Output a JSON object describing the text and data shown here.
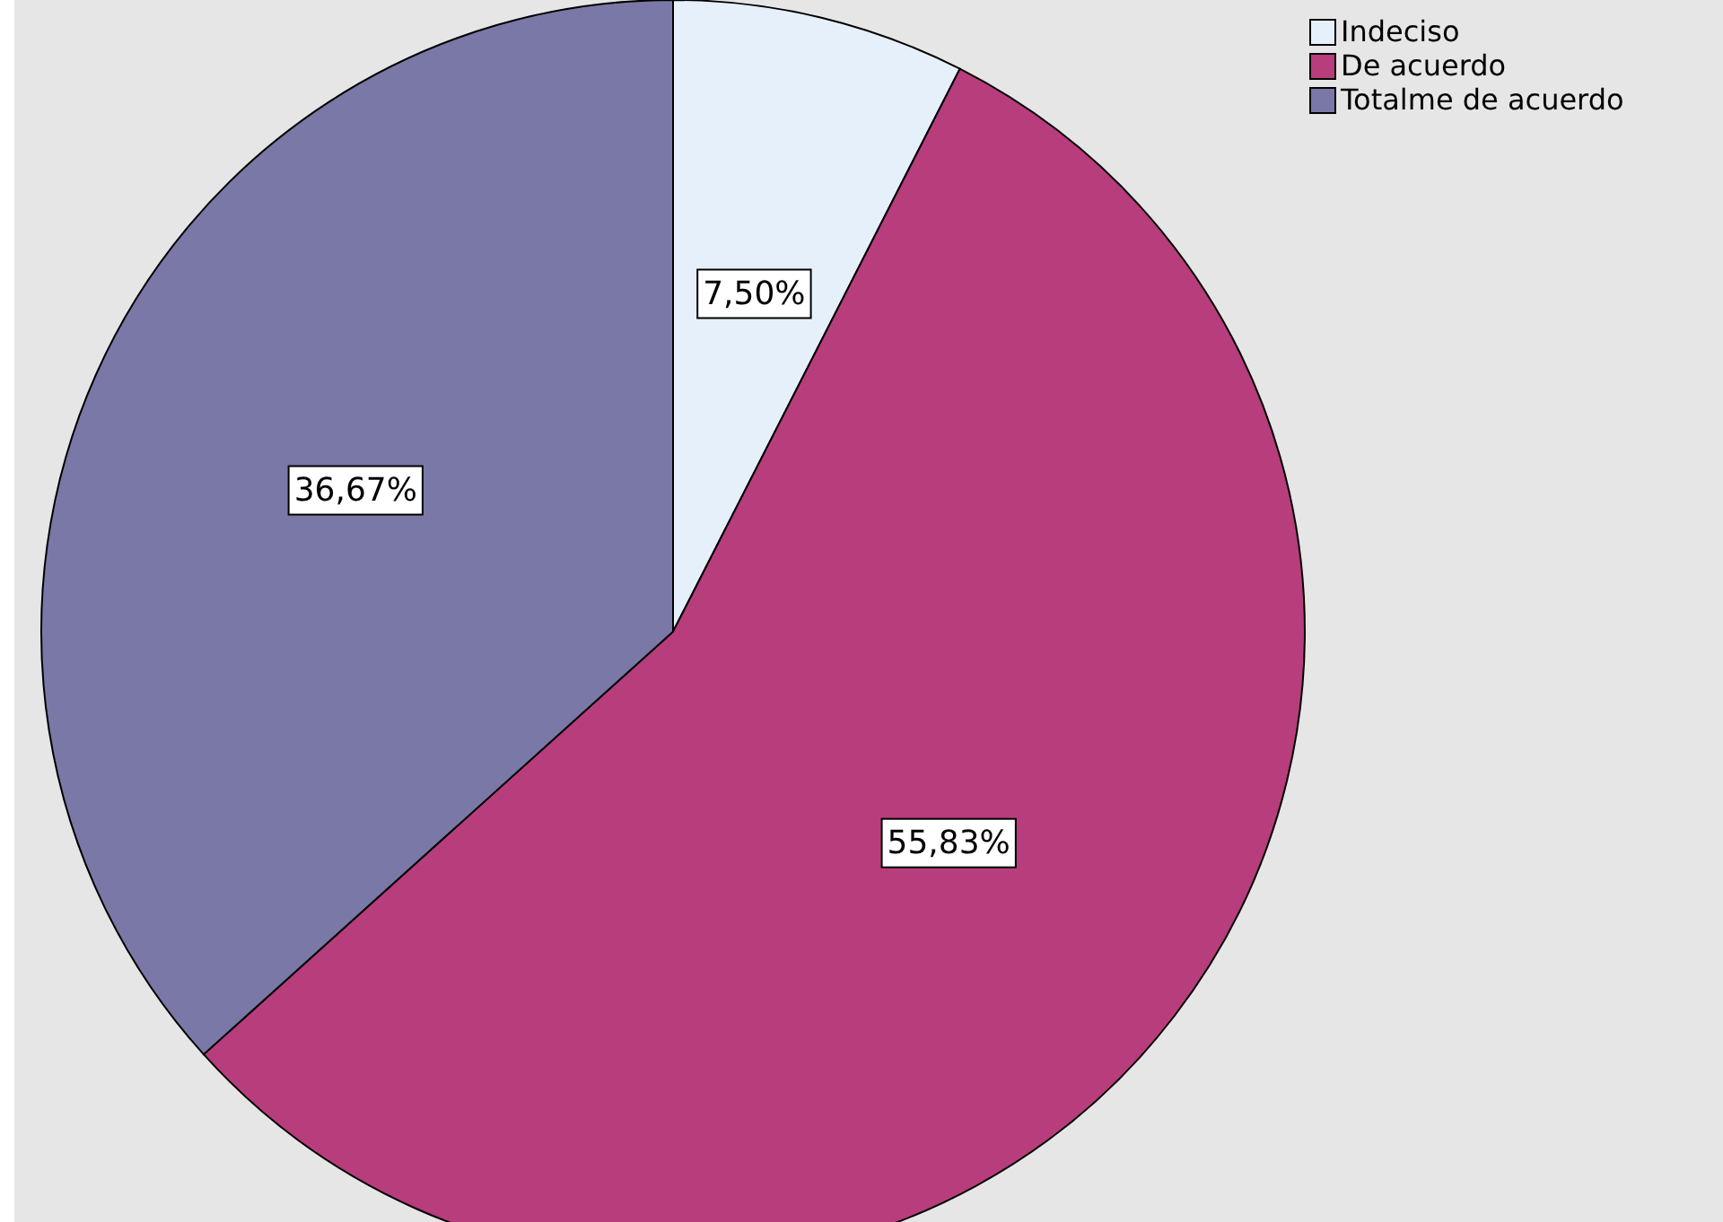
{
  "chart_data": {
    "type": "pie",
    "categories": [
      "Indeciso",
      "De acuerdo",
      "Totalme de acuerdo"
    ],
    "values": [
      7.5,
      55.83,
      36.67
    ],
    "colors": [
      "#e6f0fb",
      "#b83d7c",
      "#7a78a6"
    ],
    "value_labels": [
      "7,50%",
      "55,83%",
      "36,67%"
    ],
    "legend": "top right"
  }
}
